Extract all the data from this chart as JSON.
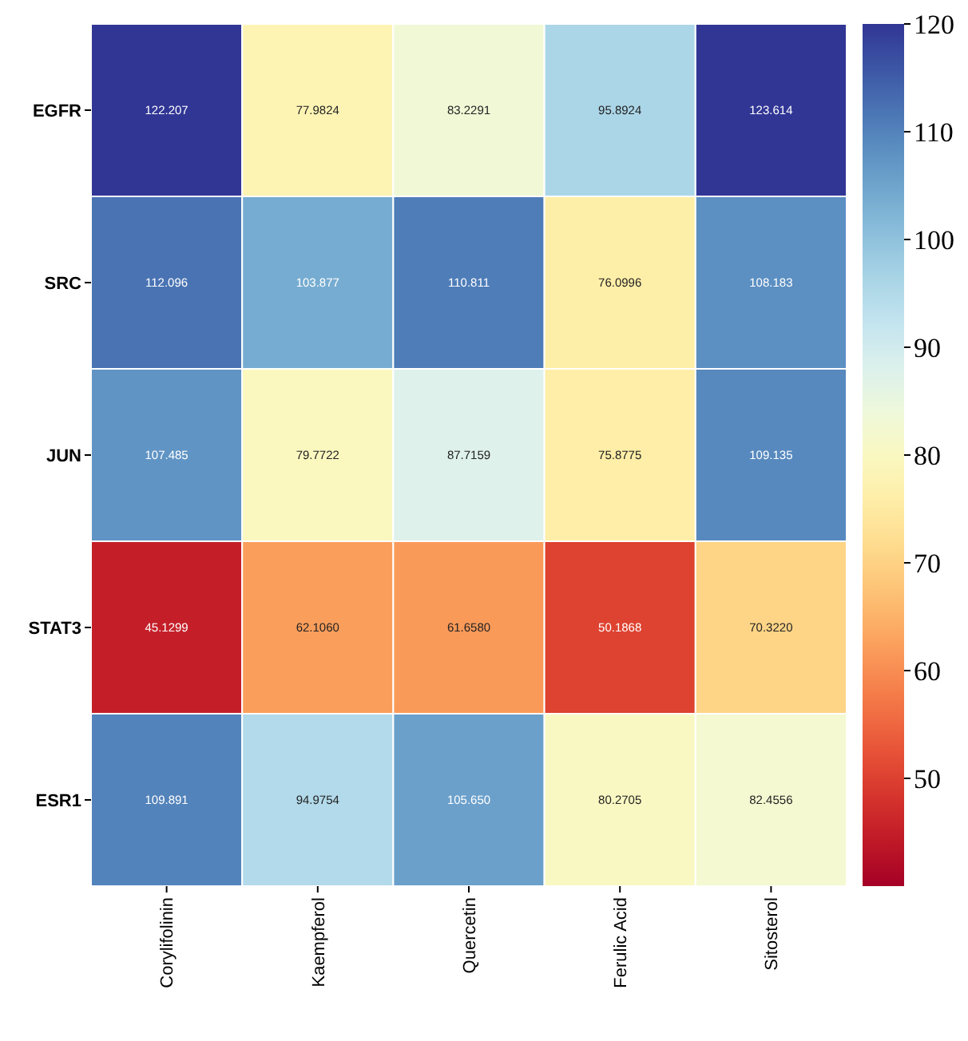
{
  "chart_data": {
    "type": "heatmap",
    "categories": [
      "Corylifolinin",
      "Kaempferol",
      "Quercetin",
      "Ferulic Acid",
      "Sitosterol"
    ],
    "y_categories": [
      "EGFR",
      "SRC",
      "JUN",
      "STAT3",
      "ESR1"
    ],
    "cells": [
      [
        122.207,
        77.9824,
        83.2291,
        95.8924,
        123.614
      ],
      [
        112.096,
        103.877,
        110.811,
        76.0996,
        108.183
      ],
      [
        107.485,
        79.7722,
        87.7159,
        75.8775,
        109.135
      ],
      [
        45.1299,
        62.106,
        61.658,
        50.1868,
        70.322
      ],
      [
        109.891,
        94.9754,
        105.65,
        80.2705,
        82.4556
      ]
    ],
    "cell_labels": [
      [
        "122.207",
        "77.9824",
        "83.2291",
        "95.8924",
        "123.614"
      ],
      [
        "112.096",
        "103.877",
        "110.811",
        "76.0996",
        "108.183"
      ],
      [
        "107.485",
        "79.7722",
        "87.7159",
        "75.8775",
        "109.135"
      ],
      [
        "45.1299",
        "62.1060",
        "61.6580",
        "50.1868",
        "70.3220"
      ],
      [
        "109.891",
        "94.9754",
        "105.650",
        "80.2705",
        "82.4556"
      ]
    ],
    "clim": [
      40,
      120
    ],
    "cticks": [
      50,
      60,
      70,
      80,
      90,
      100,
      110,
      120
    ]
  }
}
